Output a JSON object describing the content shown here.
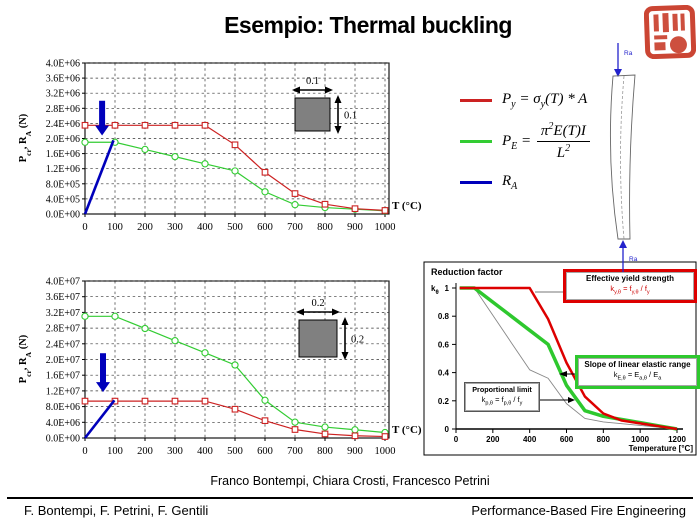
{
  "slide": {
    "title": "Esempio: Thermal buckling",
    "credits": "Franco Bontempi, Chiara Crosti, Francesco Petrini",
    "footer_left": "F. Bontempi, F. Petrini, F. Gentili",
    "footer_right": "Performance-Based Fire Engineering"
  },
  "colors": {
    "py_red": "#cc2222",
    "pe_green": "#33cc33",
    "ra_blue": "#0000bb",
    "stamp_red": "#c5311d",
    "reduction_red": "#dd0000",
    "reduction_green": "#2ec82e",
    "reduction_gray": "#888888"
  },
  "legend": {
    "items": [
      {
        "id": "py",
        "color": "#cc2222",
        "formula_html": "P<sub>y</sub> = σ<sub>y</sub>(T) * A"
      },
      {
        "id": "pe",
        "color": "#33cc33",
        "formula_html": "P<sub>E</sub> = <span class=\"frac\"><span class=\"num\">π<sup>2</sup>E(T)I</span><span class=\"den\">L<sup>2</sup></span></span>"
      },
      {
        "id": "ra",
        "color": "#0000bb",
        "formula_html": "R<sub>A</sub>"
      }
    ]
  },
  "column_diagram": {
    "top_load_label": "Ra",
    "bottom_reaction_label": "Ra"
  },
  "chart_data": [
    {
      "type": "line",
      "title": "",
      "xlabel": "T (°C)",
      "ylabel": "Pcr, RA (N)",
      "ylabel_parts": [
        [
          "P",
          0
        ],
        [
          "cr",
          1
        ],
        [
          ", R",
          0
        ],
        [
          "A",
          1
        ],
        [
          " (N)",
          0
        ]
      ],
      "x": [
        0,
        100,
        200,
        300,
        400,
        500,
        600,
        700,
        800,
        900,
        1000
      ],
      "ylim": [
        0,
        4000000
      ],
      "y_tick_step": 400000,
      "y_tick_labels": [
        "0.0E+00",
        "4.0E+05",
        "8.0E+05",
        "1.2E+06",
        "1.6E+06",
        "2.0E+06",
        "2.4E+06",
        "2.8E+06",
        "3.2E+06",
        "3.6E+06",
        "4.0E+06"
      ],
      "grid": true,
      "legend_position": "none",
      "series": [
        {
          "name": "Py = σy(T)*A",
          "color": "#cc2222",
          "marker": "square",
          "values": [
            2350000,
            2350000,
            2350000,
            2350000,
            2350000,
            1833000,
            1105000,
            541000,
            259000,
            141000,
            94000
          ]
        },
        {
          "name": "PE = π²E(T)I/L²",
          "color": "#33cc33",
          "marker": "circle",
          "values": [
            1900000,
            1900000,
            1710000,
            1520000,
            1330000,
            1140000,
            589000,
            247000,
            171000,
            128000,
            86000
          ]
        }
      ],
      "ra_line": {
        "name": "RA",
        "color": "#0000bb",
        "points": [
          [
            0,
            0
          ],
          [
            95,
            1950000
          ]
        ]
      },
      "arrow": {
        "x": 57,
        "y_from": 3000000,
        "y_to": 2080000
      },
      "inset": {
        "width_label": "0.1",
        "height_label": "0.1"
      }
    },
    {
      "type": "line",
      "title": "",
      "xlabel": "T (°C)",
      "ylabel": "Pcr, RA (N)",
      "ylabel_parts": [
        [
          "P",
          0
        ],
        [
          "cr",
          1
        ],
        [
          ", R",
          0
        ],
        [
          "A",
          1
        ],
        [
          " (N)",
          0
        ]
      ],
      "x": [
        0,
        100,
        200,
        300,
        400,
        500,
        600,
        700,
        800,
        900,
        1000
      ],
      "ylim": [
        0,
        40000000
      ],
      "y_tick_step": 4000000,
      "y_tick_labels": [
        "0.0E+00",
        "4.0E+06",
        "8.0E+06",
        "1.2E+07",
        "1.6E+07",
        "2.0E+07",
        "2.4E+07",
        "2.8E+07",
        "3.2E+07",
        "3.6E+07",
        "4.0E+07"
      ],
      "grid": true,
      "legend_position": "none",
      "series": [
        {
          "name": "Py = σy(T)*A",
          "color": "#cc2222",
          "marker": "square",
          "values": [
            9400000,
            9400000,
            9400000,
            9400000,
            9400000,
            7332000,
            4418000,
            2162000,
            1034000,
            564000,
            376000
          ]
        },
        {
          "name": "PE = π²E(T)I/L²",
          "color": "#33cc33",
          "marker": "circle",
          "values": [
            31000000,
            31000000,
            27900000,
            24800000,
            21700000,
            18600000,
            9610000,
            4030000,
            2790000,
            2093000,
            1395000
          ]
        }
      ],
      "ra_line": {
        "name": "RA",
        "color": "#0000bb",
        "points": [
          [
            0,
            0
          ],
          [
            98,
            9600000
          ]
        ]
      },
      "arrow": {
        "x": 60,
        "y_from": 21600000,
        "y_to": 11700000
      },
      "inset": {
        "width_label": "0.2",
        "height_label": "0.2"
      }
    },
    {
      "type": "line",
      "title": "Reduction factor",
      "xlabel": "Temperature [°C]",
      "ylabel": "kθ",
      "ylabel_parts": [
        [
          "k",
          0
        ],
        [
          "θ",
          1
        ]
      ],
      "xlim": [
        0,
        1200
      ],
      "ylim": [
        0,
        1
      ],
      "x_ticks": [
        0,
        200,
        400,
        600,
        800,
        1000,
        1200
      ],
      "y_ticks": [
        0,
        0.2,
        0.4,
        0.6,
        0.8,
        1
      ],
      "x": [
        20,
        100,
        200,
        300,
        400,
        500,
        600,
        700,
        800,
        900,
        1000,
        1100,
        1200
      ],
      "grid": false,
      "series": [
        {
          "name": "Proportional limit kp,θ",
          "color": "#888888",
          "width": 0.9,
          "values": [
            1,
            1,
            0.807,
            0.613,
            0.42,
            0.36,
            0.18,
            0.075,
            0.05,
            0.0375,
            0.025,
            0.0125,
            0
          ]
        },
        {
          "name": "Slope of linear elastic range kE,θ",
          "color": "#2ec82e",
          "width": 3.5,
          "values": [
            1,
            1,
            0.9,
            0.8,
            0.7,
            0.6,
            0.31,
            0.13,
            0.09,
            0.0675,
            0.045,
            0.0225,
            0
          ]
        },
        {
          "name": "Effective yield strength ky,θ",
          "color": "#dd0000",
          "width": 2.5,
          "values": [
            1,
            1,
            1,
            1,
            1,
            0.78,
            0.47,
            0.23,
            0.11,
            0.06,
            0.04,
            0.02,
            0
          ]
        }
      ],
      "annotations": [
        {
          "title": "Effective yield strength",
          "formula_html": "k<sub>y,θ</sub> = f<sub>y,θ</sub> / f<sub>y</sub>",
          "border_color": "#dd0000"
        },
        {
          "title": "Slope of linear elastic range",
          "formula_html": "k<sub>E,θ</sub> = E<sub>a,θ</sub> / E<sub>a</sub>",
          "border_color": "#2ec82e"
        },
        {
          "title": "Proportional limit",
          "formula_html": "k<sub>p,θ</sub> = f<sub>p,θ</sub> / f<sub>y</sub>",
          "border_color": "#555555"
        }
      ]
    }
  ]
}
